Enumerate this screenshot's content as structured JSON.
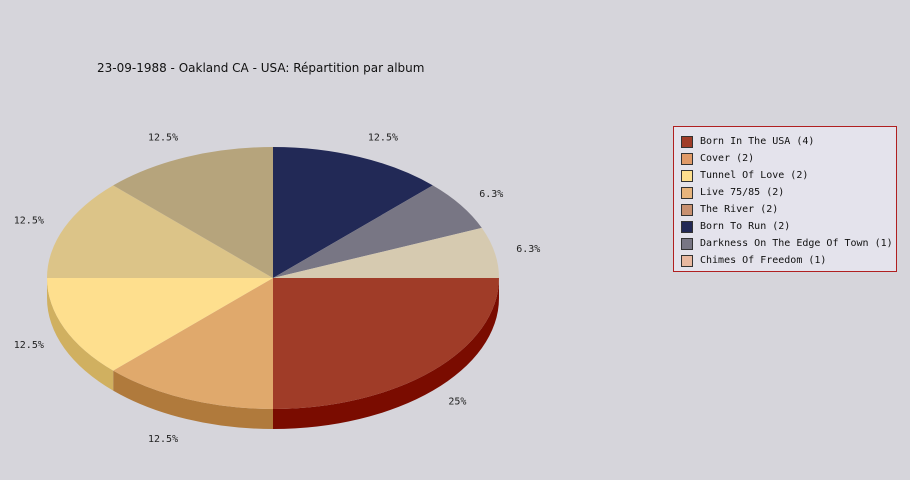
{
  "chart_data": {
    "type": "pie",
    "title": "23-09-1988 - Oakland CA - USA:  Répartition par album",
    "slices": [
      {
        "label": "Born In The USA (4)",
        "value": 4,
        "percent_label": "25%",
        "color": "#a03c28",
        "side_color": "#7a0c00"
      },
      {
        "label": "Cover (2)",
        "value": 2,
        "percent_label": "12.5%",
        "color": "#e0a96c",
        "side_color": "#b07a3c"
      },
      {
        "label": "Tunnel Of Love (2)",
        "value": 2,
        "percent_label": "12.5%",
        "color": "#fedf8e",
        "side_color": "#d0b060"
      },
      {
        "label": "Live 75/85 (2)",
        "value": 2,
        "percent_label": "12.5%",
        "color": "#dcc488",
        "side_color": "#b09a60"
      },
      {
        "label": "The River (2)",
        "value": 2,
        "percent_label": "12.5%",
        "color": "#b6a47c",
        "side_color": "#8e7e58"
      },
      {
        "label": "Born To Run (2)",
        "value": 2,
        "percent_label": "12.5%",
        "color": "#222956",
        "side_color": "#11163a"
      },
      {
        "label": "Darkness On The Edge Of Town (1)",
        "value": 1,
        "percent_label": "6.3%",
        "color": "#787684",
        "side_color": "#55535f"
      },
      {
        "label": "Chimes Of Freedom (1)",
        "value": 1,
        "percent_label": "6.3%",
        "color": "#d6cab0",
        "side_color": "#b0a488"
      }
    ],
    "legend_swatch_colors": [
      "#a03c28",
      "#e09a68",
      "#fedf8e",
      "#e7b47c",
      "#c89070",
      "#222956",
      "#787684",
      "#e8b8a0"
    ]
  }
}
